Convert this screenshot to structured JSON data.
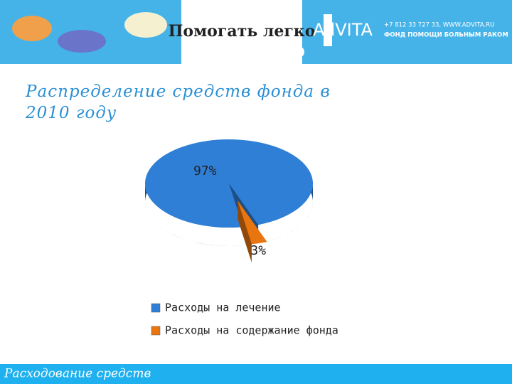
{
  "header": {
    "logo": "Помогать легко",
    "brand": "AdVITA",
    "contact": "+7 812 33 727 33, WWW.ADVITA.RU",
    "tagline": "ФОНД ПОМОЩИ БОЛЬНЫМ РАКОМ"
  },
  "chart_data": {
    "type": "pie",
    "title": "Распределение средств  фонда в 2010 году",
    "categories": [
      "Расходы на лечение",
      "Расходы на содержание фонда"
    ],
    "values": [
      97,
      3
    ],
    "value_labels": [
      "97%",
      "3%"
    ],
    "colors": [
      "#2f7fd6",
      "#e8750f"
    ],
    "legend": "bottom"
  },
  "footer": {
    "text": "Расходование средств"
  }
}
